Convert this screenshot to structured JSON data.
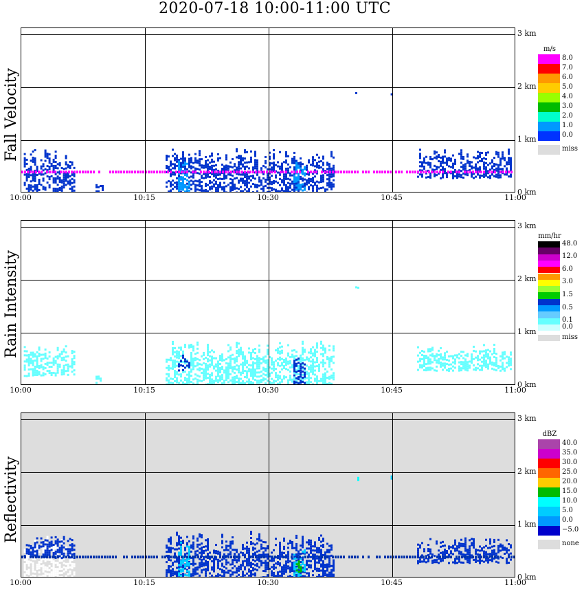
{
  "title": "2020-07-18   10:00-11:00 UTC",
  "x_ticks": [
    "10:00",
    "10:15",
    "10:30",
    "10:45",
    "11:00"
  ],
  "y_ticks": [
    "0 km",
    "1 km",
    "2 km",
    "3 km"
  ],
  "chart_data": [
    {
      "type": "heatmap",
      "title": "Fall Velocity",
      "ylabel": "Fall Velocity",
      "unit": "m/s",
      "background": "#ffffff",
      "legend": [
        {
          "label": "8.0",
          "color": "#ff00ff"
        },
        {
          "label": "7.0",
          "color": "#ff0000"
        },
        {
          "label": "6.0",
          "color": "#ff9900"
        },
        {
          "label": "5.0",
          "color": "#ffcc00"
        },
        {
          "label": "4.0",
          "color": "#99ff00"
        },
        {
          "label": "3.0",
          "color": "#00bb00"
        },
        {
          "label": "2.0",
          "color": "#00ffcc"
        },
        {
          "label": "1.0",
          "color": "#0099ff"
        },
        {
          "label": "0.0",
          "color": "#0033ff"
        },
        {
          "label": "miss",
          "color": "#dddddd"
        }
      ],
      "x_range_minutes": [
        0,
        60
      ],
      "y_range_km": [
        0,
        3
      ],
      "patches": [
        {
          "t0": 0.3,
          "t1": 6.5,
          "h0": 0.05,
          "h1": 0.85,
          "color": "#0033cc"
        },
        {
          "t0": 9.0,
          "t1": 10.0,
          "h0": 0.05,
          "h1": 0.2,
          "color": "#0033cc"
        },
        {
          "t0": 17.5,
          "t1": 29.0,
          "h0": 0.0,
          "h1": 0.9,
          "color": "#0033cc"
        },
        {
          "t0": 19.0,
          "t1": 20.5,
          "h0": 0.05,
          "h1": 0.7,
          "color": "#0099ff"
        },
        {
          "t0": 29.0,
          "t1": 38.0,
          "h0": 0.0,
          "h1": 0.85,
          "color": "#0033cc"
        },
        {
          "t0": 33.0,
          "t1": 34.5,
          "h0": 0.05,
          "h1": 0.6,
          "color": "#0099ff"
        },
        {
          "t0": 48.0,
          "t1": 59.5,
          "h0": 0.3,
          "h1": 0.85,
          "color": "#0033cc"
        },
        {
          "t0": 40.5,
          "t1": 40.8,
          "h0": 1.85,
          "h1": 1.92,
          "color": "#0033cc"
        },
        {
          "t0": 44.8,
          "t1": 45.0,
          "h0": 1.85,
          "h1": 1.95,
          "color": "#0033cc"
        }
      ],
      "line_height_km": 0.4,
      "line_color": "#ff00ff"
    },
    {
      "type": "heatmap",
      "title": "Rain Intensity",
      "ylabel": "Rain Intensity",
      "unit": "mm/hr",
      "background": "#ffffff",
      "legend": [
        {
          "label": "48.0",
          "color": "#000000"
        },
        {
          "label": "",
          "color": "#660066"
        },
        {
          "label": "12.0",
          "color": "#cc00cc"
        },
        {
          "label": "",
          "color": "#ff00ff"
        },
        {
          "label": "6.0",
          "color": "#ff0000"
        },
        {
          "label": "",
          "color": "#ff9900"
        },
        {
          "label": "3.0",
          "color": "#ffff00"
        },
        {
          "label": "",
          "color": "#99ff33"
        },
        {
          "label": "1.5",
          "color": "#00cc00"
        },
        {
          "label": "",
          "color": "#0033cc"
        },
        {
          "label": "0.5",
          "color": "#0099ff"
        },
        {
          "label": "",
          "color": "#66ccff"
        },
        {
          "label": "0.1",
          "color": "#66ffff"
        },
        {
          "label": "0.0",
          "color": "#ccffff"
        },
        {
          "label": "miss",
          "color": "#dddddd"
        }
      ],
      "x_range_minutes": [
        0,
        60
      ],
      "y_range_km": [
        0,
        3
      ],
      "patches": [
        {
          "t0": 0.3,
          "t1": 6.5,
          "h0": 0.2,
          "h1": 0.8,
          "color": "#66ffff"
        },
        {
          "t0": 9.0,
          "t1": 10.0,
          "h0": 0.05,
          "h1": 0.2,
          "color": "#66ffff"
        },
        {
          "t0": 17.5,
          "t1": 29.0,
          "h0": 0.0,
          "h1": 0.9,
          "color": "#66ffff"
        },
        {
          "t0": 19.0,
          "t1": 20.5,
          "h0": 0.3,
          "h1": 0.6,
          "color": "#0033cc"
        },
        {
          "t0": 29.0,
          "t1": 38.0,
          "h0": 0.0,
          "h1": 0.85,
          "color": "#66ffff"
        },
        {
          "t0": 33.0,
          "t1": 34.5,
          "h0": 0.05,
          "h1": 0.6,
          "color": "#0033cc"
        },
        {
          "t0": 48.0,
          "t1": 59.5,
          "h0": 0.3,
          "h1": 0.8,
          "color": "#66ffff"
        },
        {
          "t0": 40.5,
          "t1": 40.8,
          "h0": 1.85,
          "h1": 1.92,
          "color": "#66ffff"
        },
        {
          "t0": 44.8,
          "t1": 45.0,
          "h0": 1.85,
          "h1": 1.95,
          "color": "#0099ff"
        }
      ]
    },
    {
      "type": "heatmap",
      "title": "Reflectivity",
      "ylabel": "Reflectivity",
      "unit": "dBZ",
      "background": "#dddddd",
      "legend": [
        {
          "label": "40.0",
          "color": "#aa44aa"
        },
        {
          "label": "35.0",
          "color": "#cc00cc"
        },
        {
          "label": "30.0",
          "color": "#ff0000"
        },
        {
          "label": "25.0",
          "color": "#ff6600"
        },
        {
          "label": "20.0",
          "color": "#ffcc00"
        },
        {
          "label": "15.0",
          "color": "#00bb00"
        },
        {
          "label": "10.0",
          "color": "#00ffff"
        },
        {
          "label": "5.0",
          "color": "#00ccff"
        },
        {
          "label": "0.0",
          "color": "#0099ff"
        },
        {
          "label": "−5.0",
          "color": "#0000cc"
        },
        {
          "label": "none",
          "color": "#dddddd"
        }
      ],
      "x_range_minutes": [
        0,
        60
      ],
      "y_range_km": [
        0,
        3
      ],
      "patches": [
        {
          "t0": 0.3,
          "t1": 6.5,
          "h0": 0.0,
          "h1": 0.8,
          "color": "#ffffff"
        },
        {
          "t0": 0.3,
          "t1": 6.5,
          "h0": 0.4,
          "h1": 0.8,
          "color": "#0033cc"
        },
        {
          "t0": 17.5,
          "t1": 29.0,
          "h0": 0.0,
          "h1": 0.9,
          "color": "#0033cc"
        },
        {
          "t0": 19.0,
          "t1": 20.5,
          "h0": 0.05,
          "h1": 0.7,
          "color": "#00ccff"
        },
        {
          "t0": 29.0,
          "t1": 38.0,
          "h0": 0.0,
          "h1": 0.85,
          "color": "#0033cc"
        },
        {
          "t0": 33.0,
          "t1": 34.5,
          "h0": 0.05,
          "h1": 0.6,
          "color": "#00ccff"
        },
        {
          "t0": 33.3,
          "t1": 34.0,
          "h0": 0.05,
          "h1": 0.35,
          "color": "#00bb00"
        },
        {
          "t0": 48.0,
          "t1": 59.5,
          "h0": 0.3,
          "h1": 0.8,
          "color": "#0033cc"
        },
        {
          "t0": 40.5,
          "t1": 40.8,
          "h0": 1.85,
          "h1": 1.92,
          "color": "#00ffff"
        },
        {
          "t0": 44.8,
          "t1": 45.0,
          "h0": 1.85,
          "h1": 1.95,
          "color": "#00ccff"
        }
      ],
      "line_height_km": 0.4,
      "line_color": "#0033aa"
    }
  ]
}
